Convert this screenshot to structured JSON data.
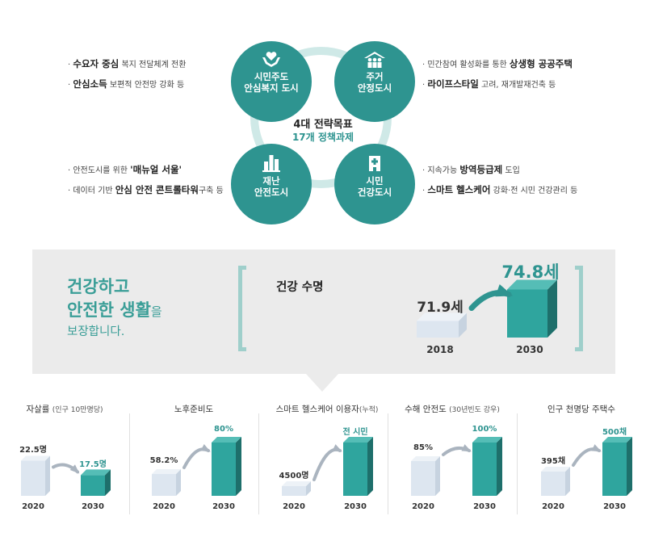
{
  "diagram": {
    "center_title": "4대 전략목표",
    "center_sub": "17개 정책과제",
    "goals": [
      {
        "label1": "시민주도",
        "label2": "안심복지 도시",
        "icon": "hands-heart-icon"
      },
      {
        "label1": "주거",
        "label2": "안정도시",
        "icon": "family-house-icon"
      },
      {
        "label1": "재난",
        "label2": "안전도시",
        "icon": "city-buildings-icon"
      },
      {
        "label1": "시민",
        "label2": "건강도시",
        "icon": "hospital-icon"
      }
    ],
    "bullets_tl": [
      {
        "bold": "수요자 중심",
        "rest": " 복지 전달체계 전환"
      },
      {
        "bold": "안심소득",
        "rest": " 보편적 안전망 강화 등"
      }
    ],
    "bullets_tr": [
      {
        "pre": "민간참여 활성화를 통한 ",
        "bold": "상생형 공공주택",
        "rest": ""
      },
      {
        "pre": "",
        "bold": "라이프스타일",
        "rest": " 고려, 재개발재건축 등"
      }
    ],
    "bullets_bl": [
      {
        "pre": "안전도시를 위한 ",
        "bold": "'매뉴얼 서울'",
        "rest": ""
      },
      {
        "pre": "데이터 기반 ",
        "bold": "안심 안전 콘트롤타워",
        "rest": "구축 등"
      }
    ],
    "bullets_br": [
      {
        "pre": "지속가능 ",
        "bold": "방역등급제",
        "rest": " 도입"
      },
      {
        "pre": "",
        "bold": "스마트 헬스케어",
        "rest": " 강화·전 시민 건강관리 등"
      }
    ]
  },
  "panel": {
    "headline1": "건강하고",
    "headline2": "안전한 생활",
    "headline2_suffix": "을",
    "headline3": "보장합니다.",
    "life_title": "건강 수명"
  },
  "colors": {
    "teal": "#2e9490",
    "teal_light": "#cfe9e7",
    "bar_light": "#dde6f0",
    "panel": "#ebebeb"
  },
  "chart_data": [
    {
      "type": "bar",
      "title": "건강 수명",
      "categories": [
        "2018",
        "2030"
      ],
      "values": [
        71.9,
        74.8
      ],
      "labels": [
        "71.9세",
        "74.8세"
      ]
    },
    {
      "type": "bar",
      "title": "자살률",
      "subtitle": "(인구 10만명당)",
      "categories": [
        "2020",
        "2030"
      ],
      "values": [
        22.5,
        17.5
      ],
      "labels": [
        "22.5명",
        "17.5명"
      ]
    },
    {
      "type": "bar",
      "title": "노후준비도",
      "subtitle": "",
      "categories": [
        "2020",
        "2030"
      ],
      "values": [
        58.2,
        80
      ],
      "labels": [
        "58.2%",
        "80%"
      ]
    },
    {
      "type": "bar",
      "title": "스마트 헬스케어 이용자",
      "subtitle": "(누적)",
      "categories": [
        "2020",
        "2030"
      ],
      "values": [
        4500,
        null
      ],
      "labels": [
        "4500명",
        "전 시민"
      ]
    },
    {
      "type": "bar",
      "title": "수해 안전도",
      "subtitle": "(30년빈도 강우)",
      "categories": [
        "2020",
        "2030"
      ],
      "values": [
        85,
        100
      ],
      "labels": [
        "85%",
        "100%"
      ]
    },
    {
      "type": "bar",
      "title": "인구 천명당 주택수",
      "subtitle": "",
      "categories": [
        "2020",
        "2030"
      ],
      "values": [
        395,
        500
      ],
      "labels": [
        "395채",
        "500채"
      ]
    }
  ]
}
